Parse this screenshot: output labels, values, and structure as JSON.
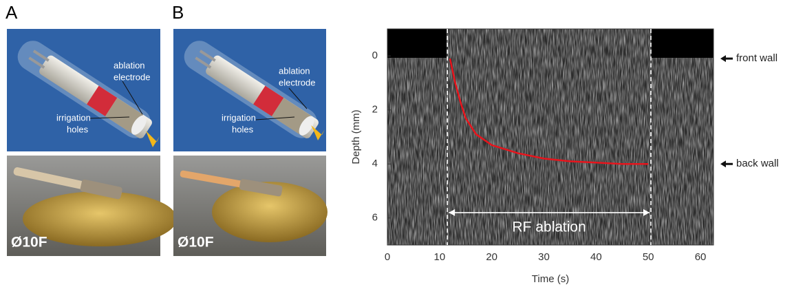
{
  "panels": [
    {
      "label": "A",
      "electrode": [
        "ablation",
        "electrode"
      ],
      "holes": [
        "irrigation",
        "holes"
      ],
      "size": "Ø10F"
    },
    {
      "label": "B",
      "electrode": [
        "ablation",
        "electrode"
      ],
      "holes": [
        "irrigation",
        "holes"
      ],
      "size": "Ø10F"
    }
  ],
  "chart_data": {
    "type": "line",
    "xlabel": "Time (s)",
    "ylabel": "Depth (mm)",
    "xlim": [
      0,
      62.5
    ],
    "ylim": [
      -1,
      7
    ],
    "y_inverted": true,
    "xticks": [
      0,
      10,
      20,
      30,
      40,
      50,
      60
    ],
    "yticks": [
      0,
      2,
      4,
      6
    ],
    "series": [
      {
        "color": "#e8141c",
        "x": [
          12,
          13,
          14,
          15,
          17,
          20,
          25,
          30,
          35,
          40,
          45,
          50
        ],
        "values": [
          0.1,
          1.0,
          1.7,
          2.3,
          2.9,
          3.3,
          3.6,
          3.8,
          3.9,
          3.95,
          4.0,
          4.0
        ]
      }
    ],
    "markers": [
      11.5,
      50.5
    ],
    "span_label": "RF ablation",
    "span_depth": 5.8,
    "annotations": [
      {
        "text": "front wall",
        "y": 0.1
      },
      {
        "text": "back wall",
        "y": 4.0
      }
    ]
  }
}
